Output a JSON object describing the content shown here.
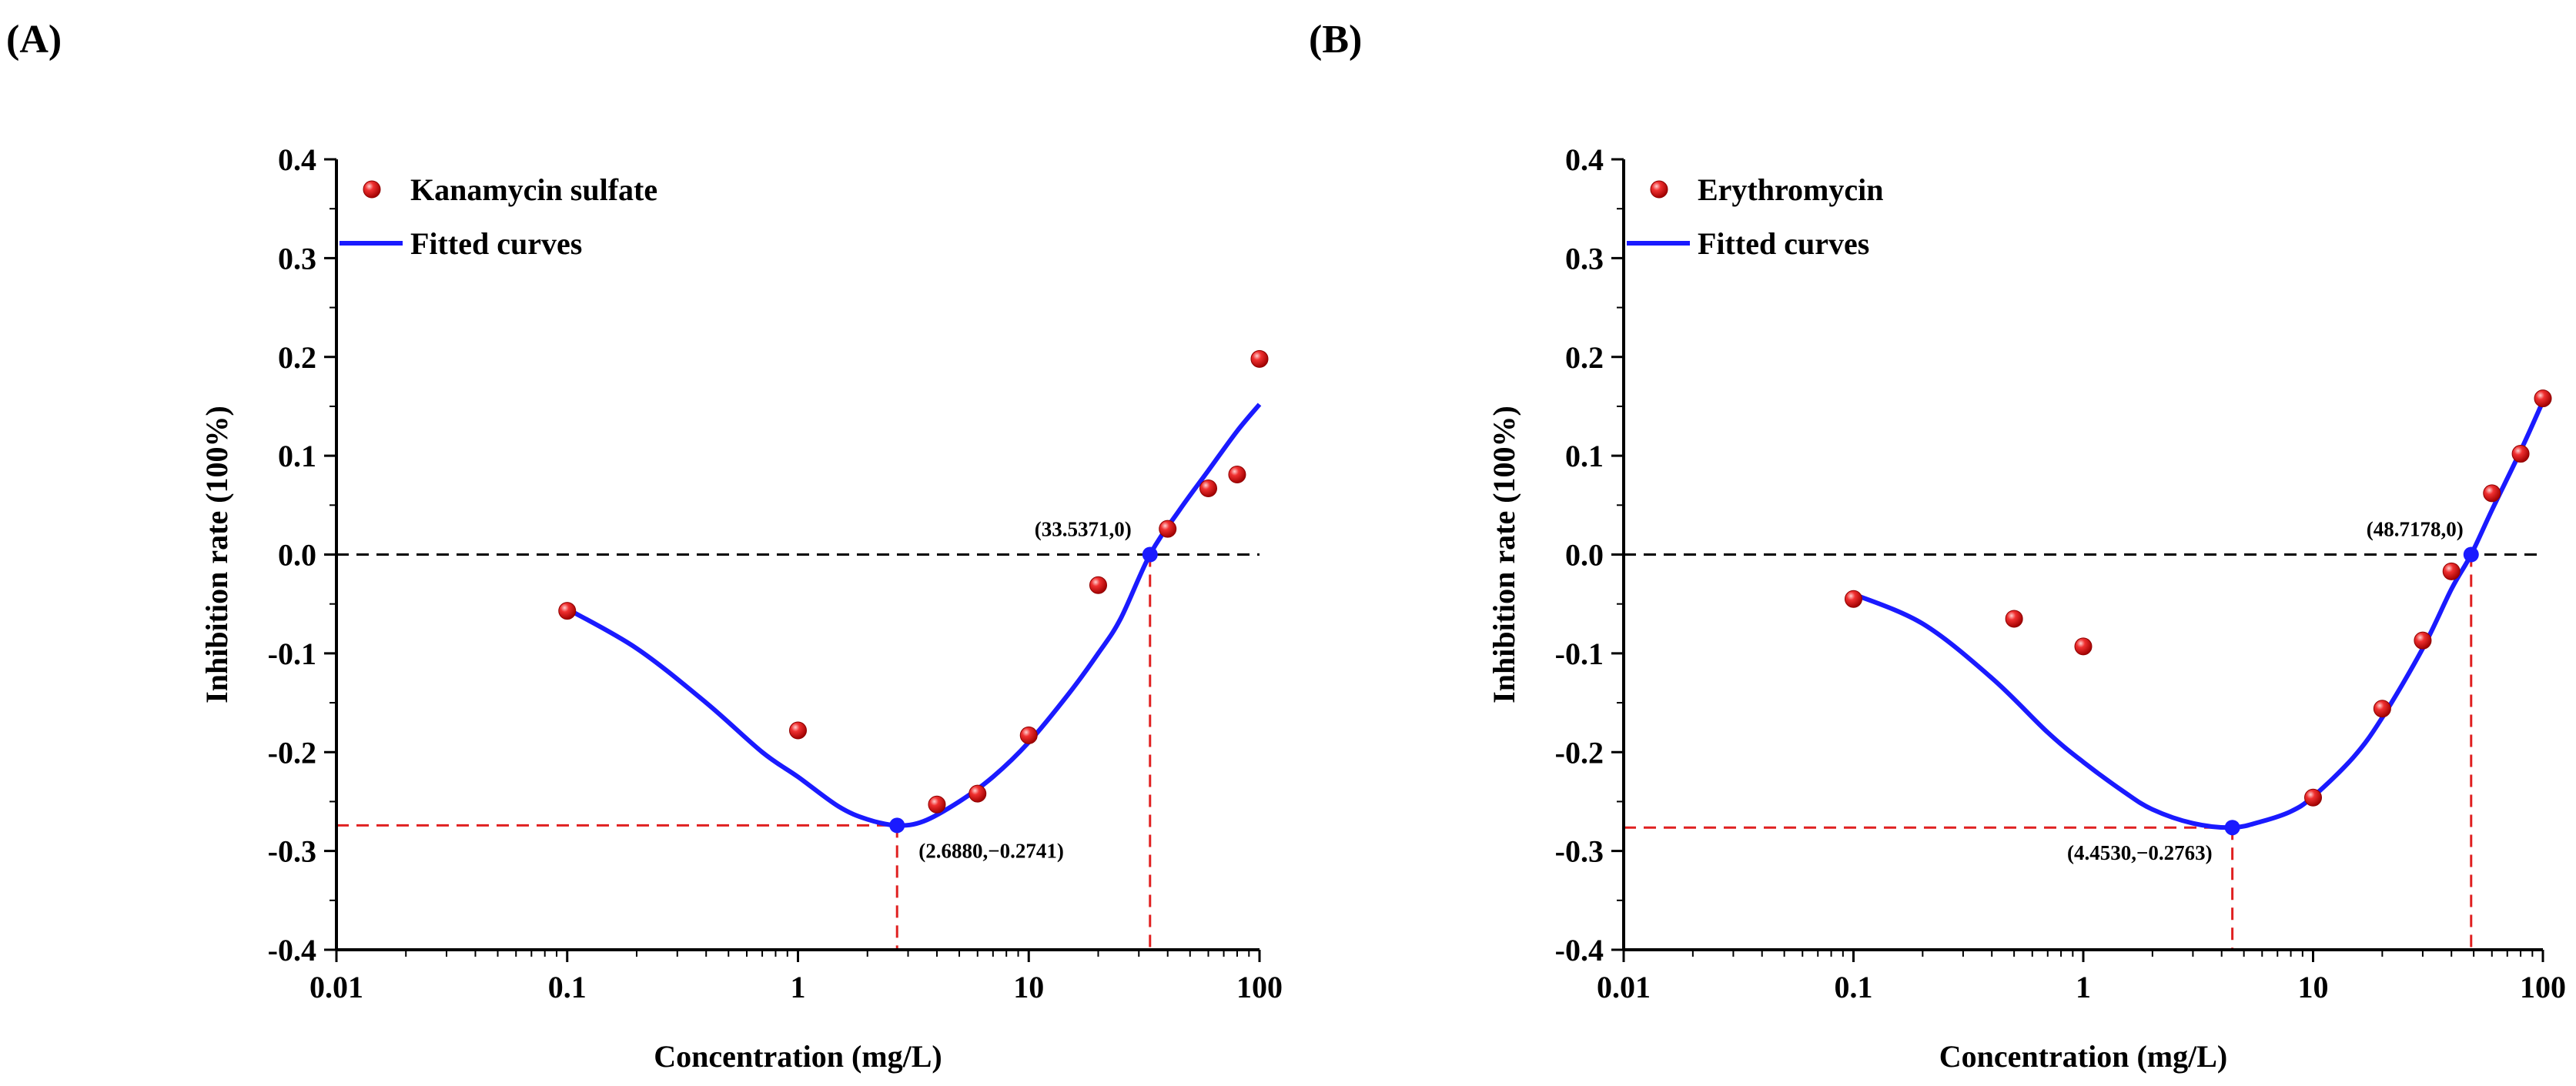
{
  "figure": {
    "panel_labels": [
      "(A)",
      "(B)"
    ]
  },
  "chart_data": [
    {
      "type": "scatter",
      "panel": "(A)",
      "xscale": "log",
      "xlim": [
        0.01,
        100
      ],
      "ylim": [
        -0.4,
        0.4
      ],
      "xticks": [
        0.01,
        0.1,
        1,
        10,
        100
      ],
      "xtick_labels": [
        "0.01",
        "0.1",
        "1",
        "10",
        "100"
      ],
      "yticks": [
        0.4,
        0.3,
        0.2,
        0.1,
        0.0,
        -0.1,
        -0.2,
        -0.3,
        -0.4
      ],
      "ytick_labels": [
        "0.4",
        "0.3",
        "0.2",
        "0.1",
        "0.0",
        "-0.1",
        "-0.2",
        "-0.3",
        "-0.4"
      ],
      "xlabel": "Concentration (mg/L)",
      "ylabel": "Inhibition rate (100%)",
      "legend_position": "top-left",
      "series": [
        {
          "name": "Kanamycin sulfate",
          "kind": "points",
          "color": "#e02020",
          "x": [
            0.1,
            1,
            4,
            6,
            10,
            20,
            40,
            60,
            80,
            100
          ],
          "y": [
            -0.057,
            -0.178,
            -0.253,
            -0.242,
            -0.183,
            -0.031,
            0.026,
            0.067,
            0.081,
            0.198
          ]
        },
        {
          "name": "Fitted curves",
          "kind": "line",
          "color": "#1a1aff",
          "x": [
            0.1,
            0.2,
            0.4,
            0.7,
            1,
            1.5,
            2,
            2.688,
            3.5,
            5,
            7,
            10,
            15,
            20,
            25,
            33.5371,
            45,
            60,
            80,
            100
          ],
          "y": [
            -0.055,
            -0.095,
            -0.15,
            -0.2,
            -0.225,
            -0.255,
            -0.268,
            -0.2741,
            -0.27,
            -0.25,
            -0.225,
            -0.19,
            -0.14,
            -0.1,
            -0.065,
            0.0,
            0.045,
            0.085,
            0.125,
            0.152
          ]
        }
      ],
      "reference_line": {
        "y": 0,
        "color": "#000000",
        "style": "dashed"
      },
      "annotations": [
        {
          "x": 2.688,
          "y": -0.2741,
          "label": "(2.6880,−0.2741)",
          "color": "#1a1aff"
        },
        {
          "x": 33.5371,
          "y": 0,
          "label": "(33.5371,0)",
          "color": "#1a1aff"
        }
      ],
      "guide_color": "#e02020"
    },
    {
      "type": "scatter",
      "panel": "(B)",
      "xscale": "log",
      "xlim": [
        0.01,
        100
      ],
      "ylim": [
        -0.4,
        0.4
      ],
      "xticks": [
        0.01,
        0.1,
        1,
        10,
        100
      ],
      "xtick_labels": [
        "0.01",
        "0.1",
        "1",
        "10",
        "100"
      ],
      "yticks": [
        0.4,
        0.3,
        0.2,
        0.1,
        0.0,
        -0.1,
        -0.2,
        -0.3,
        -0.4
      ],
      "ytick_labels": [
        "0.4",
        "0.3",
        "0.2",
        "0.1",
        "0.0",
        "-0.1",
        "-0.2",
        "-0.3",
        "-0.4"
      ],
      "xlabel": "Concentration (mg/L)",
      "ylabel": "Inhibition rate (100%)",
      "legend_position": "top-left",
      "series": [
        {
          "name": "Erythromycin",
          "kind": "points",
          "color": "#e02020",
          "x": [
            0.1,
            0.5,
            1,
            10,
            20,
            30,
            40,
            60,
            80,
            100
          ],
          "y": [
            -0.045,
            -0.065,
            -0.093,
            -0.246,
            -0.156,
            -0.087,
            -0.017,
            0.062,
            0.102,
            0.158
          ]
        },
        {
          "name": "Fitted curves",
          "kind": "line",
          "color": "#1a1aff",
          "x": [
            0.1,
            0.2,
            0.4,
            0.7,
            1,
            1.5,
            2,
            3,
            4.453,
            6,
            8,
            10,
            15,
            20,
            30,
            40,
            48.7178,
            60,
            80,
            100
          ],
          "y": [
            -0.04,
            -0.07,
            -0.125,
            -0.18,
            -0.21,
            -0.24,
            -0.258,
            -0.272,
            -0.2763,
            -0.27,
            -0.26,
            -0.245,
            -0.205,
            -0.165,
            -0.095,
            -0.035,
            0.0,
            0.045,
            0.105,
            0.155
          ]
        }
      ],
      "reference_line": {
        "y": 0,
        "color": "#000000",
        "style": "dashed"
      },
      "annotations": [
        {
          "x": 4.453,
          "y": -0.2763,
          "label": "(4.4530,−0.2763)",
          "color": "#1a1aff"
        },
        {
          "x": 48.7178,
          "y": 0,
          "label": "(48.7178,0)",
          "color": "#1a1aff"
        }
      ],
      "guide_color": "#e02020"
    }
  ]
}
